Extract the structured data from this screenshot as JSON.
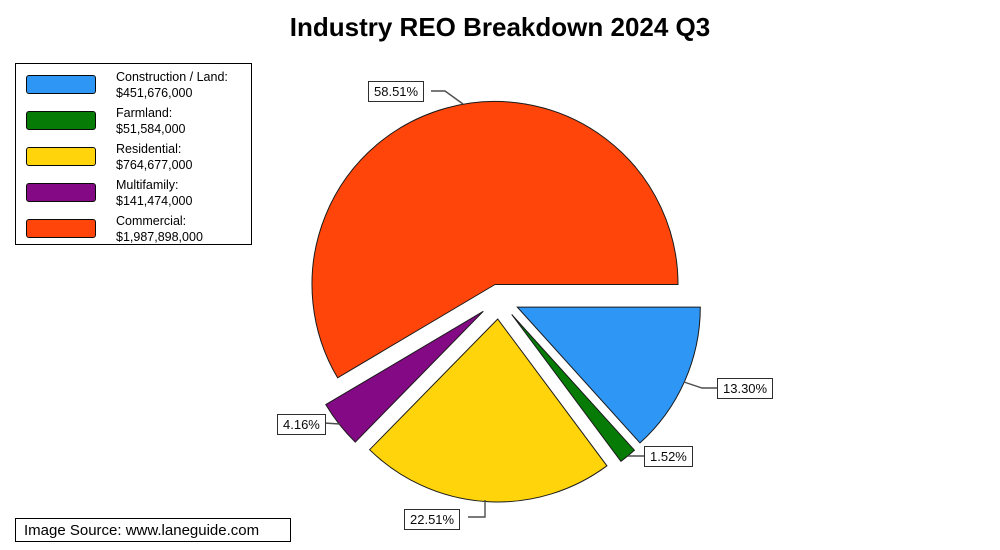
{
  "title": "Industry REO Breakdown 2024 Q3",
  "source_note": "Image Source: www.laneguide.com",
  "chart_data": {
    "type": "pie",
    "title": "Industry REO Breakdown 2024 Q3",
    "legend_position": "top-left",
    "start_angle_deg": 0,
    "direction": "clockwise",
    "exploded": true,
    "slices": [
      {
        "label": "Construction / Land",
        "legend_label": "Construction / Land:",
        "value": 451676000,
        "value_label": "$451,676,000",
        "pct": 13.3,
        "pct_label": "13.30%",
        "color": "#2E96F5"
      },
      {
        "label": "Farmland",
        "legend_label": "Farmland:",
        "value": 51584000,
        "value_label": "$51,584,000",
        "pct": 1.52,
        "pct_label": "1.52%",
        "color": "#067B06"
      },
      {
        "label": "Residential",
        "legend_label": "Residential:",
        "value": 764677000,
        "value_label": "$764,677,000",
        "pct": 22.51,
        "pct_label": "22.51%",
        "color": "#FFD40A"
      },
      {
        "label": "Multifamily",
        "legend_label": "Multifamily:",
        "value": 141474000,
        "value_label": "$141,474,000",
        "pct": 4.16,
        "pct_label": "4.16%",
        "color": "#840984"
      },
      {
        "label": "Commercial",
        "legend_label": "Commercial:",
        "value": 1987898000,
        "value_label": "$1,987,898,000",
        "pct": 58.51,
        "pct_label": "58.51%",
        "color": "#FF4509"
      }
    ]
  }
}
